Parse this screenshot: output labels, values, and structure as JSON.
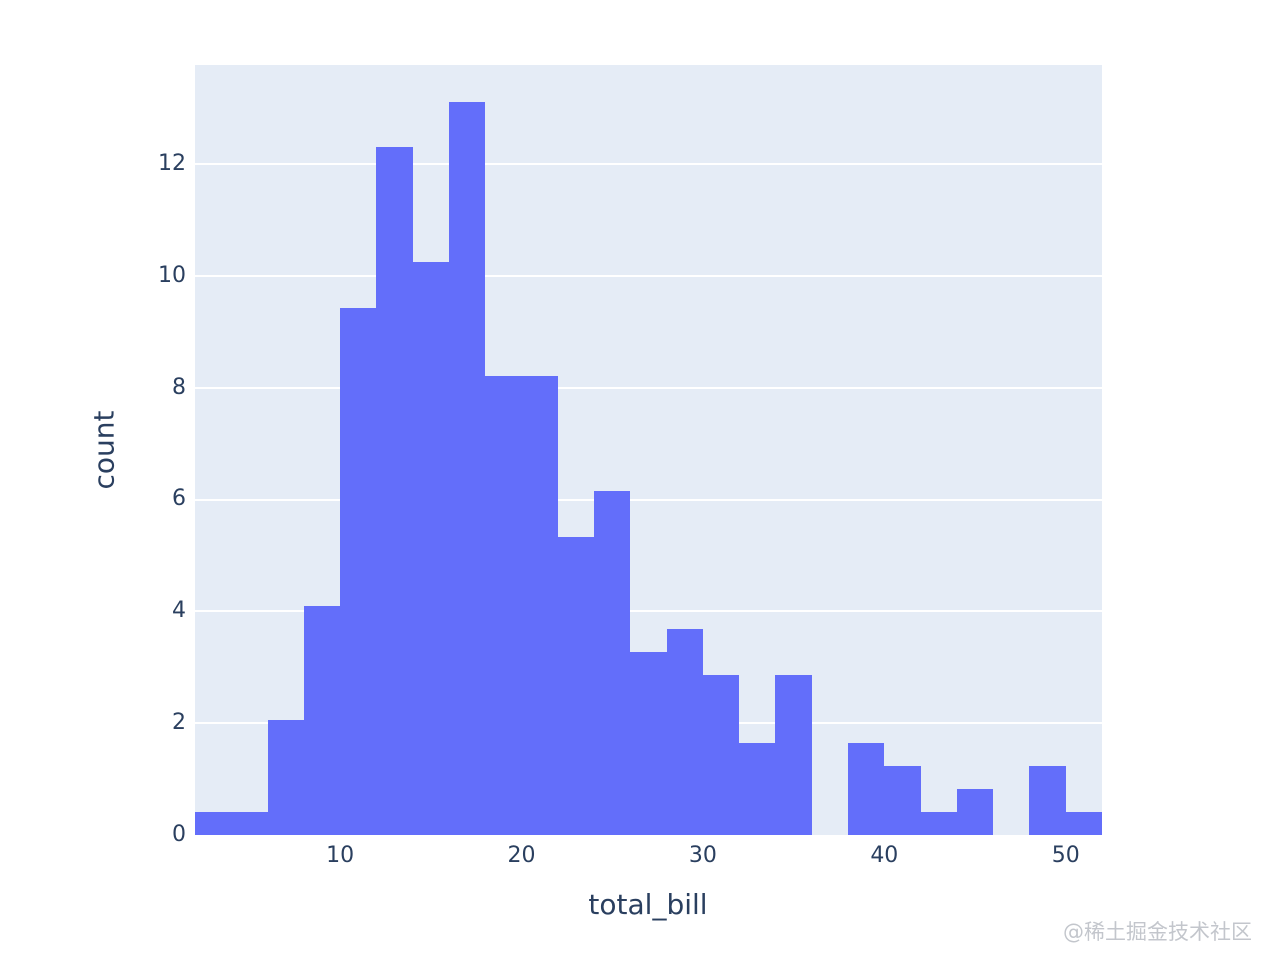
{
  "figure": {
    "xlabel": "total_bill",
    "ylabel": "count",
    "watermark": "@稀土掘金技术社区"
  },
  "chart_data": {
    "type": "bar",
    "subtype": "histogram",
    "title": "",
    "xlabel": "total_bill",
    "ylabel": "count",
    "bin_start": 2,
    "bin_width": 2,
    "bin_edges": [
      2,
      4,
      6,
      8,
      10,
      12,
      14,
      16,
      18,
      20,
      22,
      24,
      26,
      28,
      30,
      32,
      34,
      36,
      38,
      40,
      42,
      44,
      46,
      48,
      50,
      52
    ],
    "values": [
      0.41,
      0.41,
      2.05,
      4.1,
      9.43,
      12.3,
      10.25,
      13.11,
      8.2,
      8.2,
      5.33,
      6.15,
      3.28,
      3.69,
      2.87,
      1.64,
      2.87,
      0,
      1.64,
      1.23,
      0.41,
      0.82,
      0,
      1.23,
      0.41
    ],
    "x_ticks": [
      10,
      20,
      30,
      40,
      50
    ],
    "y_ticks": [
      0,
      2,
      4,
      6,
      8,
      10,
      12
    ],
    "xlim": [
      2,
      52
    ],
    "ylim": [
      0,
      13.77
    ],
    "grid": "horizontal-only",
    "legend": "none",
    "colors": {
      "bar": "#636EFA",
      "plot_bg": "#E5ECF6",
      "grid": "#FFFFFF",
      "text": "#2A3F5F",
      "watermark": "#B9BDC4"
    }
  }
}
